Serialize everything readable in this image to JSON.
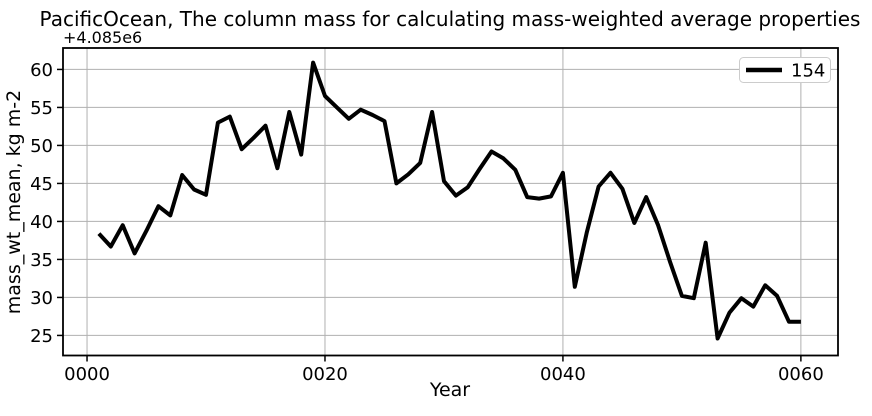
{
  "figure": {
    "title": "PacificOcean, The column mass for calculating mass-weighted average properties",
    "offset_text": "+4.085e6",
    "xlabel": "Year",
    "ylabel": "mass_wt_mean, kg m-2",
    "legend": {
      "label": "154",
      "line_color": "#000000"
    }
  },
  "chart_data": {
    "type": "line",
    "title": "PacificOcean, The column mass for calculating mass-weighted average properties",
    "xlabel": "Year",
    "ylabel": "mass_wt_mean, kg m-2",
    "y_offset_text": "+4.085e6",
    "xlim": [
      -2.02,
      63.12
    ],
    "ylim": [
      22.36,
      62.82
    ],
    "grid": true,
    "legend_position": "upper right",
    "xticks": {
      "values": [
        0,
        20,
        40,
        60
      ],
      "labels": [
        "0000",
        "0020",
        "0040",
        "0060"
      ]
    },
    "yticks": {
      "values": [
        25,
        30,
        35,
        40,
        45,
        50,
        55,
        60
      ],
      "labels": [
        "25",
        "30",
        "35",
        "40",
        "45",
        "50",
        "55",
        "60"
      ]
    },
    "colors": {
      "line": "#000000",
      "grid": "#b0b0b0",
      "spine": "#000000",
      "background": "#ffffff"
    },
    "series": [
      {
        "name": "154",
        "color": "#000000",
        "x": [
          1,
          2,
          3,
          4,
          5,
          6,
          7,
          8,
          9,
          10,
          11,
          12,
          13,
          14,
          15,
          16,
          17,
          18,
          19,
          20,
          21,
          22,
          23,
          24,
          25,
          26,
          27,
          28,
          29,
          30,
          31,
          32,
          33,
          34,
          35,
          36,
          37,
          38,
          39,
          40,
          41,
          42,
          43,
          44,
          45,
          46,
          47,
          48,
          49,
          50,
          51,
          52,
          53,
          54,
          55,
          56,
          57,
          58,
          59,
          60
        ],
        "values": [
          38.4,
          36.7,
          39.5,
          35.8,
          38.8,
          42.0,
          40.8,
          46.1,
          44.2,
          43.5,
          53.0,
          53.8,
          49.5,
          51.0,
          52.6,
          47.0,
          54.4,
          48.8,
          60.9,
          56.5,
          55.0,
          53.5,
          54.7,
          54.0,
          53.2,
          45.0,
          46.2,
          47.7,
          54.4,
          45.3,
          43.4,
          44.5,
          46.9,
          49.2,
          48.3,
          46.8,
          43.2,
          43.0,
          43.3,
          46.4,
          31.4,
          38.5,
          44.6,
          46.4,
          44.3,
          39.8,
          43.2,
          39.5,
          34.7,
          30.2,
          29.9,
          37.2,
          24.6,
          28.0,
          29.9,
          28.8,
          31.6,
          30.2,
          26.8,
          26.8
        ]
      }
    ]
  }
}
